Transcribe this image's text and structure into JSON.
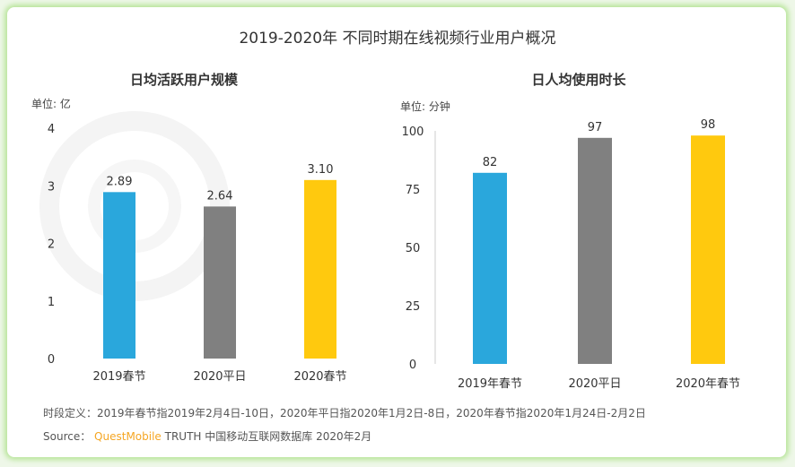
{
  "title": "2019-2020年 不同时期在线视频行业用户概况",
  "watermark": "QUESTMOBILE",
  "footnote": "时段定义：2019年春节指2019年2月4日-10日，2020年平日指2020年1月2日-8日，2020年春节指2020年1月24日-2月2日",
  "source": {
    "label": "Source：",
    "brand": "QuestMobile",
    "rest": "TRUTH 中国移动互联网数据库 2020年2月"
  },
  "colors": {
    "blue": "#2aa7dc",
    "gray": "#808080",
    "gold": "#ffc90e",
    "brand": "#f5a623"
  },
  "chart_data": [
    {
      "type": "bar",
      "title": "日均活跃用户规模",
      "unit": "单位: 亿",
      "categories": [
        "2019春节",
        "2020平日",
        "2020春节"
      ],
      "values": [
        2.89,
        2.64,
        3.1
      ],
      "labels": [
        "2.89",
        "2.64",
        "3.10"
      ],
      "ylim": [
        0,
        4
      ],
      "yticks": [
        "0",
        "1",
        "2",
        "3",
        "4"
      ]
    },
    {
      "type": "bar",
      "title": "日人均使用时长",
      "unit": "单位: 分钟",
      "categories": [
        "2019年春节",
        "2020平日",
        "2020年春节"
      ],
      "values": [
        82,
        97,
        98
      ],
      "labels": [
        "82",
        "97",
        "98"
      ],
      "ylim": [
        0,
        100
      ],
      "yticks": [
        "0",
        "25",
        "50",
        "75",
        "100"
      ]
    }
  ]
}
